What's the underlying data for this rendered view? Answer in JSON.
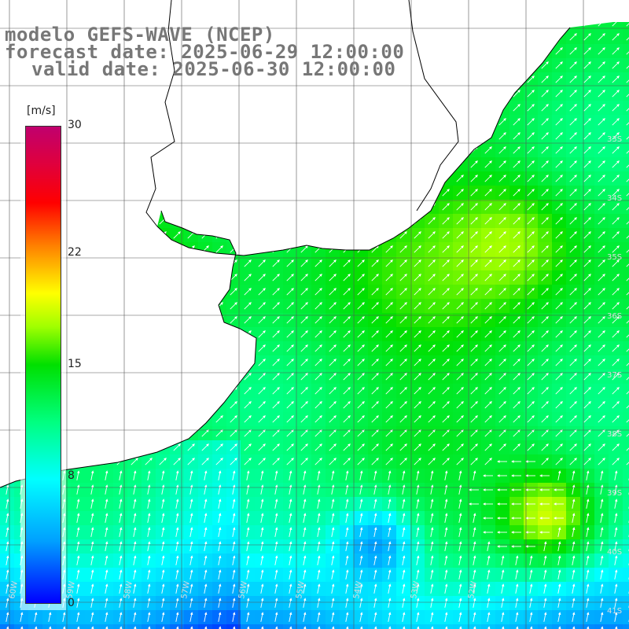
{
  "header": {
    "line1": "modelo GEFS-WAVE (NCEP)",
    "line2": "forecast date: 2025-06-29 12:00:00",
    "line3": "valid date: 2025-06-30 12:00:00"
  },
  "legend": {
    "unit": "[m/s]",
    "ticks": [
      {
        "label": "30",
        "value": 30
      },
      {
        "label": "22",
        "value": 22
      },
      {
        "label": "15",
        "value": 15
      },
      {
        "label": "8",
        "value": 8
      },
      {
        "label": "0",
        "value": 0
      }
    ],
    "min": 0,
    "max": 30
  },
  "colors": {
    "land": "#ffffff",
    "grid": "#555555",
    "coast": "#000000",
    "arrow": "#ffffff",
    "title_text": "#777777"
  },
  "lat_labels": [
    "33S",
    "34S",
    "35S",
    "36S",
    "37S",
    "38S",
    "39S",
    "40S",
    "41S"
  ],
  "lon_labels": [
    "60W",
    "59W",
    "58W",
    "57W",
    "56W",
    "55W",
    "54W",
    "53W",
    "52W"
  ]
}
